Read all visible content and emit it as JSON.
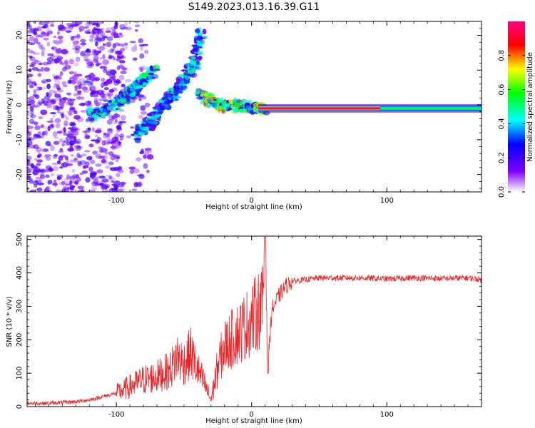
{
  "title": "S149.2023.013.16.39.G11",
  "colors": {
    "snr_line": "#e8262a",
    "background": "#ffffff",
    "axes": "#000000"
  },
  "chart_data": [
    {
      "type": "heatmap",
      "xlabel": "Height of straight line (km)",
      "ylabel": "Frequency (Hz)",
      "xlim": [
        -166,
        170
      ],
      "ylim": [
        -25,
        24
      ],
      "x_ticks": [
        -100,
        0,
        100
      ],
      "y_ticks": [
        20,
        10,
        0,
        -10,
        -20
      ],
      "grid": false,
      "colorbar": {
        "label": "Normalized spectral amplitude",
        "range": [
          0.0,
          1.0
        ],
        "ticks": [
          "0.0",
          "0.2",
          "0.4",
          "0.6",
          "0.8"
        ],
        "colormap": [
          "#ffffff",
          "#8000ff",
          "#0000ff",
          "#00ffff",
          "#00ff00",
          "#ffff00",
          "#ff0000",
          "#ff0080"
        ]
      },
      "features": [
        {
          "name": "noise",
          "x_range": [
            -166,
            -95
          ],
          "y_range": [
            -25,
            24
          ],
          "amplitude": 0.15
        },
        {
          "name": "branch1",
          "points": [
            [
              -120,
              -3
            ],
            [
              -105,
              -1
            ],
            [
              -95,
              2
            ],
            [
              -88,
              4
            ],
            [
              -80,
              7
            ],
            [
              -72,
              10
            ]
          ],
          "amplitude": 0.45
        },
        {
          "name": "branch2",
          "points": [
            [
              -85,
              -9
            ],
            [
              -75,
              -5
            ],
            [
              -65,
              0
            ],
            [
              -58,
              3
            ],
            [
              -50,
              7
            ],
            [
              -42,
              12
            ],
            [
              -37,
              21
            ]
          ],
          "amplitude": 0.4
        },
        {
          "name": "converge",
          "points": [
            [
              -38,
              3
            ],
            [
              -30,
              1
            ],
            [
              -20,
              -0.5
            ],
            [
              -10,
              0
            ],
            [
              0,
              -1
            ],
            [
              10,
              -1
            ]
          ],
          "amplitude": 0.7
        },
        {
          "name": "carrier",
          "x_range": [
            5,
            95
          ],
          "y": -1,
          "amplitude": 0.95
        },
        {
          "name": "carrier_far",
          "x_range": [
            95,
            170
          ],
          "y": -1,
          "amplitude": 0.55
        }
      ]
    },
    {
      "type": "line",
      "xlabel": "Height of straight line (km)",
      "ylabel": "SNR (10 * v/v)",
      "xlim": [
        -166,
        170
      ],
      "ylim": [
        0,
        510
      ],
      "x_ticks": [
        -100,
        0,
        100
      ],
      "y_ticks": [
        0,
        100,
        200,
        300,
        400,
        500
      ],
      "grid": false,
      "series": [
        {
          "x": [
            -166,
            -150,
            -130,
            -120,
            -110,
            -100,
            -90,
            -80,
            -70,
            -60,
            -55,
            -50,
            -45,
            -40,
            -35,
            -30,
            -25,
            -20,
            -15,
            -10,
            -5,
            0,
            5,
            8,
            10,
            12,
            15,
            20,
            25,
            30,
            40,
            50,
            60,
            80,
            100,
            120,
            140,
            160,
            170
          ],
          "y": [
            10,
            10,
            15,
            20,
            30,
            40,
            60,
            80,
            90,
            110,
            150,
            130,
            160,
            110,
            70,
            20,
            120,
            180,
            200,
            220,
            240,
            260,
            290,
            300,
            510,
            120,
            290,
            330,
            360,
            375,
            380,
            385,
            385,
            385,
            382,
            385,
            383,
            385,
            380
          ]
        }
      ]
    }
  ]
}
